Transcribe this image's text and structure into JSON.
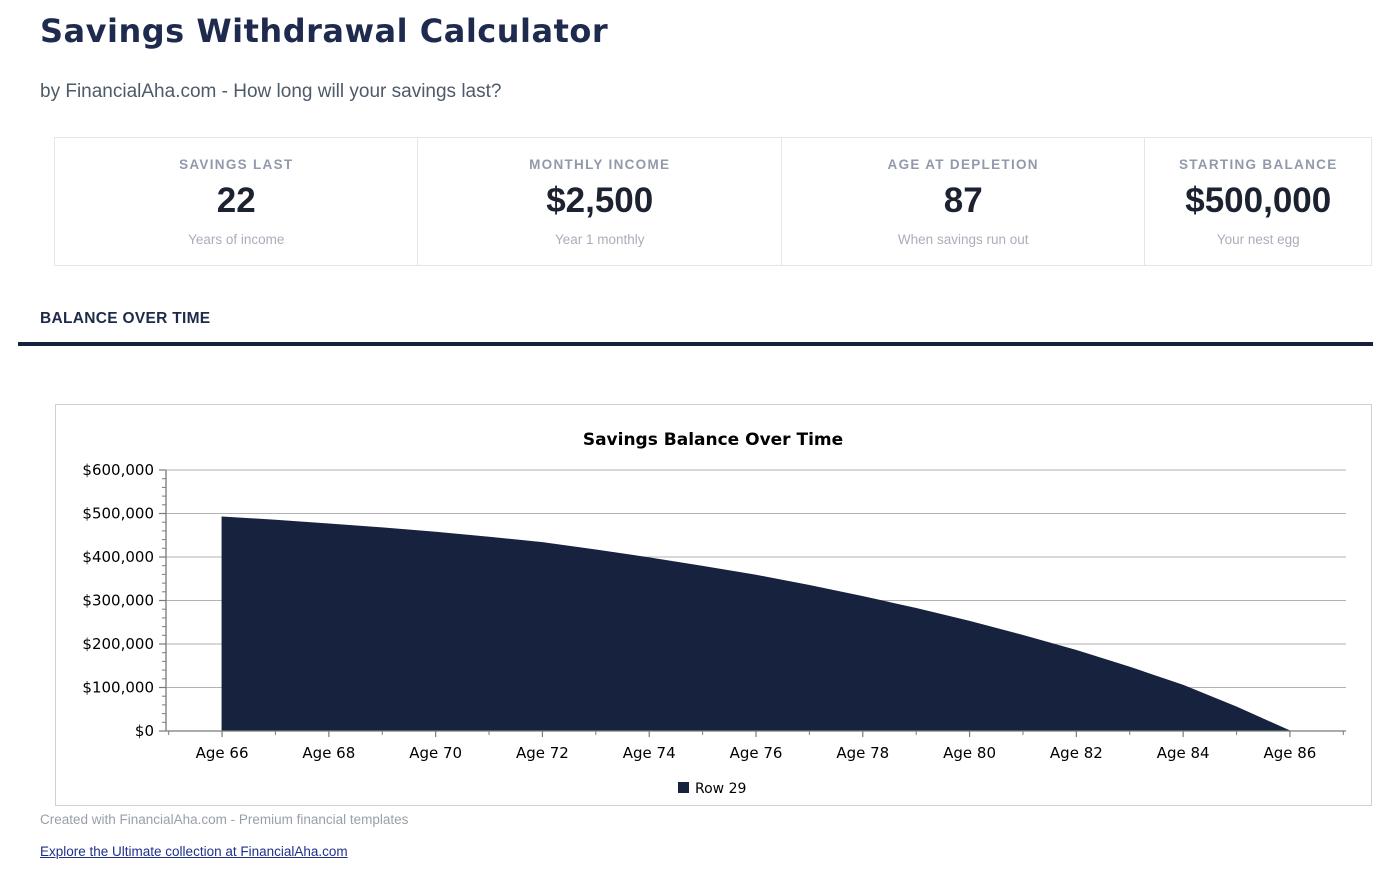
{
  "page": {
    "title": "Savings Withdrawal Calculator",
    "subtitle": "by FinancialAha.com - How long will your savings last?"
  },
  "stats": {
    "items": [
      {
        "label": "SAVINGS LAST",
        "value": "22",
        "caption": "Years of income"
      },
      {
        "label": "MONTHLY INCOME",
        "value": "$2,500",
        "caption": "Year 1 monthly"
      },
      {
        "label": "AGE AT DEPLETION",
        "value": "87",
        "caption": "When savings run out"
      },
      {
        "label": "STARTING BALANCE",
        "value": "$500,000",
        "caption": "Your nest egg"
      }
    ]
  },
  "section": {
    "title": "BALANCE OVER TIME"
  },
  "chart_data": {
    "type": "area",
    "title": "Savings Balance Over Time",
    "x_range": [
      64.95,
      87.05
    ],
    "y_range": [
      0,
      600000
    ],
    "x_major_ticks": [
      66,
      68,
      70,
      72,
      74,
      76,
      78,
      80,
      82,
      84,
      86
    ],
    "x_tick_labels": [
      "Age 66",
      "Age 68",
      "Age 70",
      "Age 72",
      "Age 74",
      "Age 76",
      "Age 78",
      "Age 80",
      "Age 82",
      "Age 84",
      "Age 86"
    ],
    "x_minor_ticks": [
      65,
      67,
      69,
      71,
      73,
      75,
      77,
      79,
      81,
      83,
      85,
      87
    ],
    "y_ticks": [
      0,
      100000,
      200000,
      300000,
      400000,
      500000,
      600000
    ],
    "y_tick_labels": [
      "$0",
      "$100,000",
      "$200,000",
      "$300,000",
      "$400,000",
      "$500,000",
      "$600,000"
    ],
    "y_minor_step": 20000,
    "grid": true,
    "legend_position": "bottom",
    "series": [
      {
        "name": "Row 29",
        "color": "#17233e",
        "x": [
          66,
          67,
          68,
          69,
          70,
          71,
          72,
          73,
          74,
          75,
          76,
          77,
          78,
          79,
          80,
          81,
          82,
          83,
          84,
          85,
          86
        ],
        "values": [
          492000,
          484500,
          476000,
          467000,
          457000,
          445500,
          433000,
          416000,
          398000,
          378500,
          358000,
          334500,
          309000,
          281500,
          252000,
          219500,
          185000,
          146500,
          105000,
          55000,
          0
        ]
      }
    ]
  },
  "footer": {
    "credit": "Created with FinancialAha.com - Premium financial templates",
    "link": "Explore the Ultimate collection at FinancialAha.com"
  },
  "colors": {
    "accent_navy": "#16213c",
    "heading_navy": "#1f2b4e",
    "link_blue": "#20308a",
    "gridline": "#b2b2b2",
    "axis": "#7a7a7a"
  }
}
